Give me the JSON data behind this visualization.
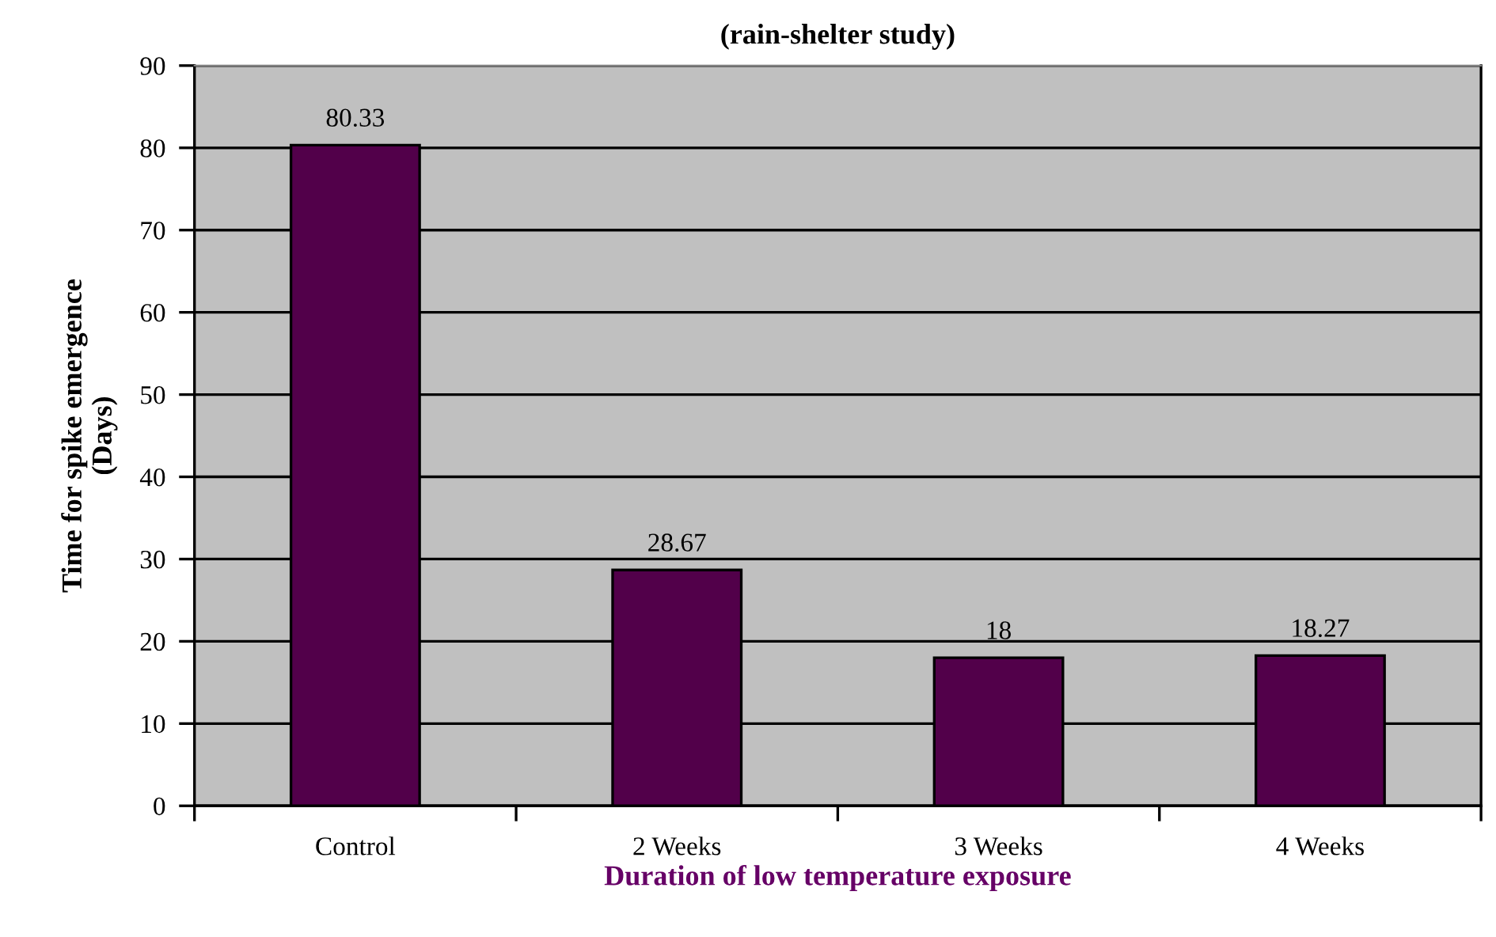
{
  "chart_data": {
    "type": "bar",
    "title": "(rain-shelter study)",
    "xlabel": "Duration of low temperature exposure",
    "ylabel": "Time for spike emergence\n(Days)",
    "categories": [
      "Control",
      "2 Weeks",
      "3 Weeks",
      "4 Weeks"
    ],
    "values": [
      80.33,
      28.67,
      18,
      18.27
    ],
    "color": "#52004a",
    "ylim": [
      0,
      90
    ],
    "yticks": [
      0,
      10,
      20,
      30,
      40,
      50,
      60,
      70,
      80,
      90
    ],
    "grid": "y",
    "data_labels": true
  }
}
